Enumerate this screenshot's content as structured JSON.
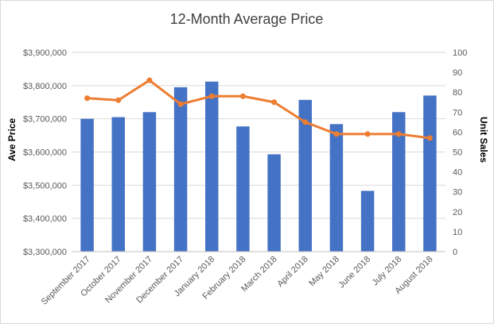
{
  "chart_data": {
    "type": "bar",
    "title": "12-Month Average Price",
    "categories": [
      "September 2017",
      "October 2017",
      "November 2017",
      "December 2017",
      "January 2018",
      "February 2018",
      "March 2018",
      "April 2018",
      "May 2018",
      "June 2018",
      "July 2018",
      "August 2018"
    ],
    "series": [
      {
        "type": "bar",
        "axis": "left",
        "color": "#4472C4",
        "values": [
          3700000,
          3705000,
          3720000,
          3795000,
          3812000,
          3677000,
          3593000,
          3757000,
          3684000,
          3483000,
          3720000,
          3770000
        ]
      },
      {
        "type": "line",
        "axis": "right",
        "color": "#ED7D31",
        "values": [
          77,
          76,
          86,
          74,
          78,
          78,
          75,
          65,
          59,
          59,
          59,
          57
        ]
      }
    ],
    "ylabel": "Ave Price",
    "y2label": "Unit Sales",
    "ylim": [
      3300000,
      3900000
    ],
    "y2lim": [
      0,
      100
    ],
    "yticks": [
      "$3,300,000",
      "$3,400,000",
      "$3,500,000",
      "$3,600,000",
      "$3,700,000",
      "$3,800,000",
      "$3,900,000"
    ],
    "y2ticks": [
      "0",
      "10",
      "20",
      "30",
      "40",
      "50",
      "60",
      "70",
      "80",
      "90",
      "100"
    ],
    "grid": true,
    "legend": "none",
    "gridColor": "#d9d9d9"
  }
}
